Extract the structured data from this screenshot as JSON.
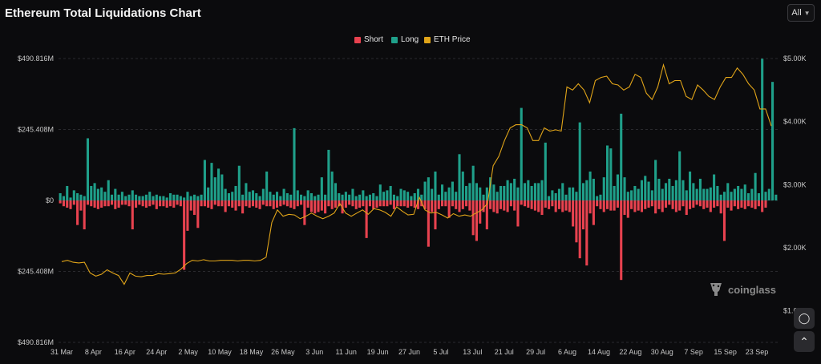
{
  "title": "Ethereum Total Liquidations Chart",
  "range_selector": {
    "value": "All",
    "icon": "chevron-down-icon"
  },
  "legend": [
    {
      "label": "Short",
      "color": "#e8424f"
    },
    {
      "label": "Long",
      "color": "#1fa08a"
    },
    {
      "label": "ETH Price",
      "color": "#e0a419"
    }
  ],
  "watermark": {
    "text": "coinglass",
    "icon": "coinglass-logo-icon"
  },
  "side_buttons": {
    "screenshot_icon": "camera-icon",
    "scroll_top_icon": "chevron-up-icon"
  },
  "chart_data": {
    "type": "bar",
    "y_left_ticks": [
      "$490.816M",
      "$245.408M",
      "$0",
      "$245.408M",
      "$490.816M"
    ],
    "y_right_ticks": [
      "$5.00K",
      "$4.00K",
      "$3.00K",
      "$2.00K",
      "$1.00K"
    ],
    "x_ticks": [
      "31 Mar",
      "8 Apr",
      "16 Apr",
      "24 Apr",
      "2 May",
      "10 May",
      "18 May",
      "26 May",
      "3 Jun",
      "11 Jun",
      "19 Jun",
      "27 Jun",
      "5 Jul",
      "13 Jul",
      "21 Jul",
      "29 Jul",
      "6 Aug",
      "14 Aug",
      "22 Aug",
      "30 Aug",
      "7 Sep",
      "15 Sep",
      "23 Sep"
    ],
    "ylim_liquidations_musd": [
      -490.816,
      490.816
    ],
    "ylim_price_usd": [
      500,
      5000
    ],
    "series": [
      {
        "name": "Long",
        "unit": "M USD",
        "values": [
          25,
          15,
          50,
          10,
          35,
          25,
          20,
          15,
          215,
          50,
          60,
          40,
          45,
          30,
          70,
          20,
          40,
          20,
          30,
          15,
          20,
          35,
          20,
          15,
          15,
          20,
          30,
          15,
          20,
          15,
          15,
          10,
          25,
          20,
          20,
          15,
          10,
          30,
          15,
          20,
          15,
          20,
          140,
          45,
          130,
          80,
          110,
          90,
          40,
          25,
          30,
          50,
          120,
          20,
          60,
          30,
          35,
          25,
          15,
          40,
          100,
          30,
          20,
          30,
          15,
          40,
          25,
          20,
          250,
          35,
          20,
          15,
          35,
          25,
          15,
          20,
          80,
          20,
          175,
          100,
          60,
          25,
          20,
          30,
          20,
          40,
          15,
          20,
          35,
          15,
          20,
          25,
          15,
          55,
          30,
          35,
          50,
          20,
          15,
          40,
          35,
          30,
          15,
          25,
          40,
          20,
          65,
          80,
          40,
          100,
          20,
          55,
          30,
          45,
          65,
          30,
          160,
          100,
          50,
          60,
          120,
          60,
          45,
          20,
          45,
          80,
          55,
          30,
          50,
          50,
          70,
          60,
          75,
          45,
          320,
          60,
          70,
          50,
          60,
          60,
          70,
          200,
          15,
          35,
          25,
          40,
          60,
          20,
          45,
          45,
          30,
          270,
          60,
          70,
          100,
          75,
          15,
          20,
          80,
          190,
          180,
          50,
          90,
          300,
          80,
          30,
          35,
          50,
          40,
          70,
          85,
          65,
          35,
          140,
          75,
          40,
          60,
          75,
          50,
          70,
          170,
          70,
          35,
          100,
          60,
          40,
          75,
          40,
          40,
          45,
          90,
          50,
          20,
          30,
          60,
          30,
          40,
          50,
          40,
          55,
          25,
          40,
          95,
          25,
          490,
          30,
          40,
          410,
          20
        ]
      },
      {
        "name": "Short",
        "unit": "M USD",
        "values": [
          10,
          20,
          25,
          30,
          15,
          85,
          35,
          100,
          15,
          20,
          25,
          30,
          25,
          20,
          20,
          15,
          30,
          25,
          15,
          15,
          20,
          100,
          25,
          15,
          20,
          25,
          20,
          15,
          30,
          20,
          20,
          25,
          20,
          25,
          15,
          20,
          240,
          105,
          35,
          50,
          95,
          20,
          20,
          25,
          30,
          15,
          20,
          20,
          40,
          20,
          25,
          35,
          20,
          45,
          20,
          25,
          20,
          25,
          30,
          15,
          20,
          20,
          30,
          25,
          20,
          15,
          20,
          25,
          30,
          20,
          15,
          85,
          25,
          40,
          45,
          40,
          35,
          45,
          20,
          30,
          25,
          20,
          45,
          25,
          15,
          20,
          30,
          25,
          20,
          130,
          20,
          30,
          25,
          20,
          20,
          20,
          15,
          30,
          20,
          20,
          20,
          25,
          20,
          25,
          30,
          20,
          30,
          160,
          40,
          100,
          30,
          20,
          20,
          60,
          20,
          30,
          40,
          30,
          20,
          35,
          120,
          140,
          80,
          40,
          100,
          30,
          40,
          45,
          30,
          35,
          40,
          20,
          35,
          90,
          15,
          20,
          25,
          30,
          35,
          40,
          50,
          25,
          30,
          20,
          40,
          30,
          40,
          35,
          40,
          90,
          145,
          200,
          100,
          225,
          45,
          85,
          20,
          30,
          40,
          30,
          35,
          35,
          25,
          275,
          50,
          60,
          30,
          40,
          35,
          40,
          30,
          25,
          20,
          45,
          30,
          40,
          25,
          15,
          30,
          40,
          35,
          20,
          50,
          30,
          25,
          15,
          20,
          30,
          25,
          40,
          25,
          20,
          45,
          140,
          25,
          35,
          20,
          30,
          25,
          30,
          20,
          25,
          30,
          20,
          40,
          25
        ]
      },
      {
        "name": "ETH Price",
        "unit": "USD",
        "values": [
          1780,
          1800,
          1770,
          1760,
          1770,
          1600,
          1550,
          1580,
          1650,
          1600,
          1560,
          1420,
          1600,
          1550,
          1540,
          1560,
          1560,
          1590,
          1580,
          1590,
          1600,
          1660,
          1750,
          1800,
          1790,
          1810,
          1790,
          1790,
          1800,
          1800,
          1800,
          1790,
          1800,
          1800,
          1790,
          1800,
          1850,
          2400,
          2600,
          2500,
          2530,
          2520,
          2460,
          2500,
          2550,
          2500,
          2460,
          2500,
          2550,
          2700,
          2550,
          2500,
          2550,
          2600,
          2530,
          2620,
          2600,
          2560,
          2500,
          2650,
          2580,
          2520,
          2530,
          2800,
          2600,
          2550,
          2560,
          2520,
          2470,
          2540,
          2500,
          2520,
          2500,
          2550,
          2600,
          2700,
          3300,
          3450,
          3700,
          3900,
          3950,
          3950,
          3900,
          3700,
          3700,
          3900,
          3850,
          3870,
          3850,
          4550,
          4500,
          4600,
          4500,
          4300,
          4650,
          4700,
          4720,
          4600,
          4580,
          4500,
          4550,
          4750,
          4700,
          4450,
          4350,
          4550,
          4900,
          4600,
          4650,
          4650,
          4400,
          4350,
          4580,
          4500,
          4400,
          4350,
          4550,
          4700,
          4700,
          4850,
          4750,
          4600,
          4500,
          4200,
          4200,
          3930
        ]
      }
    ]
  }
}
